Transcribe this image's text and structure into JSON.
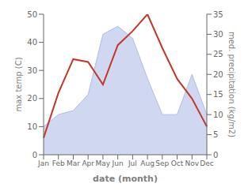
{
  "chart_data": {
    "type": "line",
    "categories": [
      "Jan",
      "Feb",
      "Mar",
      "Apr",
      "May",
      "Jun",
      "Jul",
      "Aug",
      "Sep",
      "Oct",
      "Nov",
      "Dec"
    ],
    "x_label": "date (month)",
    "y_label": "max temp (C)",
    "y2_label": "med. precipitation (kg/m2)",
    "series": [
      {
        "type": "area",
        "axis": "y2",
        "color": "#b0bce8",
        "values": [
          7,
          10,
          11,
          15,
          30,
          32,
          29,
          19,
          10,
          10,
          20,
          10
        ]
      },
      {
        "type": "line",
        "color": "#c0392b",
        "values": [
          6,
          22,
          34,
          33,
          25,
          39,
          44,
          50,
          38,
          27,
          20,
          10
        ]
      }
    ],
    "ylim": [
      0,
      50
    ],
    "yticks": [
      0,
      10,
      20,
      30,
      40,
      50
    ],
    "y2lim": [
      0,
      35
    ],
    "y2ticks": [
      0,
      5,
      10,
      15,
      20,
      25,
      30,
      35
    ],
    "grid": false
  }
}
